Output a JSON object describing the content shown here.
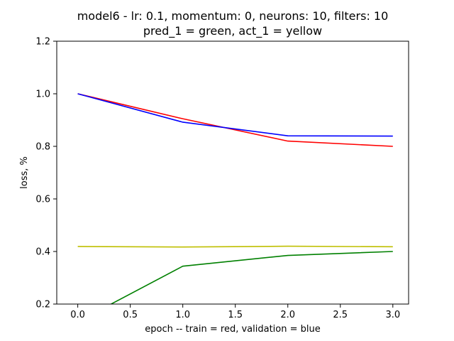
{
  "chart_data": {
    "type": "line",
    "title": "model6 - lr: 0.1, momentum: 0, neurons: 10, filters: 10",
    "subtitle": "pred_1 = green, act_1 = yellow",
    "xlabel": "epoch -- train = red, validation = blue",
    "ylabel": "loss, %",
    "xlim": [
      -0.2,
      3.15
    ],
    "ylim": [
      0.2,
      1.2
    ],
    "xticks": [
      "0.0",
      "0.5",
      "1.0",
      "1.5",
      "2.0",
      "2.5",
      "3.0"
    ],
    "yticks": [
      "0.2",
      "0.4",
      "0.6",
      "0.8",
      "1.0",
      "1.2"
    ],
    "grid": false,
    "x": [
      0,
      1,
      2,
      3
    ],
    "series": [
      {
        "color": "#ff0000",
        "values": [
          1.0,
          0.905,
          0.82,
          0.8
        ]
      },
      {
        "color": "#0000ff",
        "values": [
          1.0,
          0.892,
          0.84,
          0.839
        ]
      },
      {
        "color": "#bfbf00",
        "values": [
          0.419,
          0.417,
          0.42,
          0.418
        ]
      },
      {
        "color": "#008000",
        "values": [
          0.133,
          0.344,
          0.385,
          0.4
        ]
      }
    ]
  }
}
